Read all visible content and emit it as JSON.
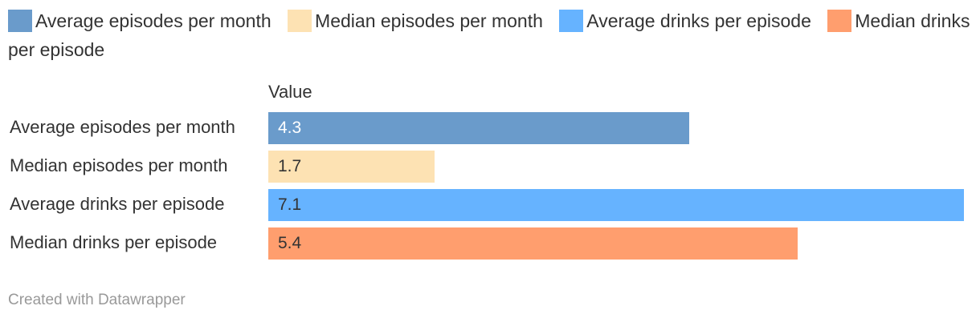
{
  "legend": [
    {
      "label": "Average episodes per month",
      "color": "#6a9bcb"
    },
    {
      "label": "Median episodes per month",
      "color": "#fde2b3"
    },
    {
      "label": "Average drinks per episode",
      "color": "#66b3ff"
    },
    {
      "label": "Median drinks per episode",
      "color": "#ff9e6e"
    }
  ],
  "chart_data": {
    "type": "bar",
    "orientation": "horizontal",
    "column_header": "Value",
    "categories": [
      "Average episodes per month",
      "Median episodes per month",
      "Average drinks per episode",
      "Median drinks per episode"
    ],
    "values": [
      4.3,
      1.7,
      7.1,
      5.4
    ],
    "value_labels": [
      "4.3",
      "1.7",
      "7.1",
      "5.4"
    ],
    "colors": [
      "#6a9bcb",
      "#fde2b3",
      "#66b3ff",
      "#ff9e6e"
    ],
    "value_text_colors": [
      "#ffffff",
      "#333333",
      "#333333",
      "#333333"
    ],
    "xlim": [
      0,
      7.1
    ]
  },
  "footer": "Created with Datawrapper"
}
